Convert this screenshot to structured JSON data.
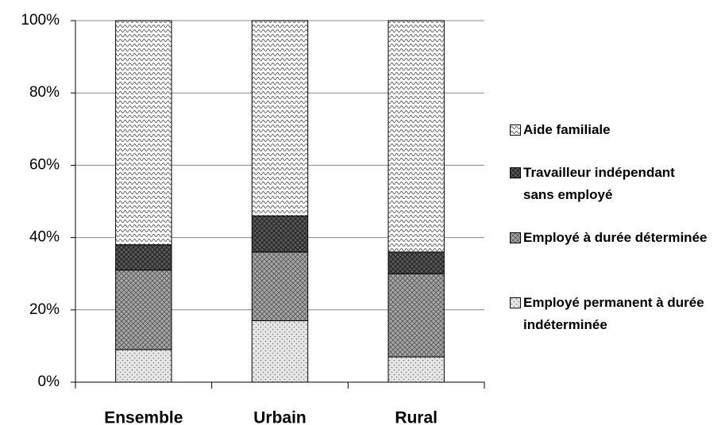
{
  "chart_data": {
    "type": "stacked_bar",
    "categories": [
      "Ensemble",
      "Urbain",
      "Rural"
    ],
    "series": [
      {
        "name": "Employé permanent à durée indéterminée",
        "color": "#e6e6e6",
        "values": [
          9,
          17,
          7
        ]
      },
      {
        "name": "Employé à durée déterminée",
        "color": "#a6a6a6",
        "values": [
          22,
          19,
          23
        ]
      },
      {
        "name": "Travailleur indépendant sans employé",
        "color": "#595959",
        "values": [
          7,
          10,
          6
        ]
      },
      {
        "name": "Aide familiale",
        "color": "#ffffff",
        "values": [
          62,
          54,
          64
        ]
      }
    ],
    "ylim": [
      0,
      100
    ],
    "yticks": [
      {
        "value": 0,
        "label": "0%"
      },
      {
        "value": 20,
        "label": "20%"
      },
      {
        "value": 40,
        "label": "40%"
      },
      {
        "value": 60,
        "label": "60%"
      },
      {
        "value": 80,
        "label": "80%"
      },
      {
        "value": 100,
        "label": "100%"
      }
    ],
    "grid": true
  }
}
